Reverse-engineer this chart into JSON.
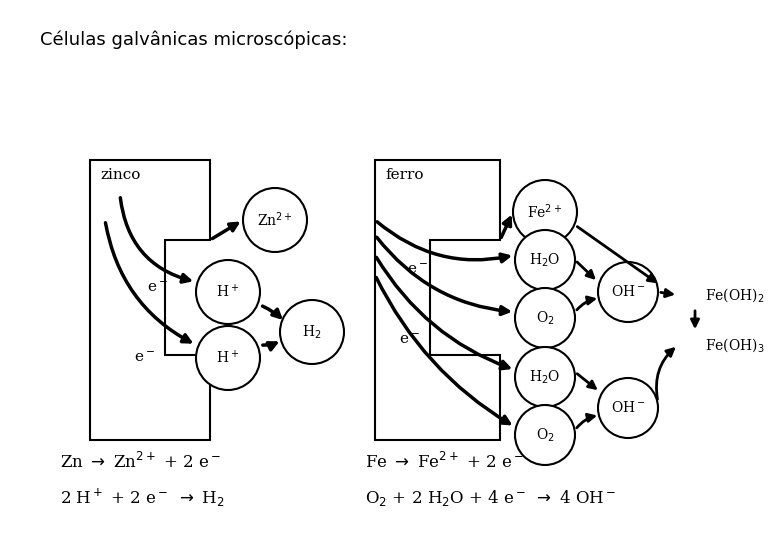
{
  "title": "Células galvânicas microscópicas:",
  "bg_color": "#ffffff",
  "zinc_label": "zinco",
  "iron_label": "ferro",
  "feoh2_label": "Fe(OH)$_2$",
  "feoh3_label": "Fe(OH)$_3$",
  "eq1": "Zn $\\rightarrow$ Zn$^{2+}$ + 2 e$^-$",
  "eq2": "2 H$^+$ + 2 e$^-$ $\\rightarrow$ H$_2$",
  "eq3": "Fe $\\rightarrow$ Fe$^{2+}$ + 2 e$^-$",
  "eq4": "O$_2$ + 2 H$_2$O + 4 e$^-$ $\\rightarrow$ 4 OH$^-$"
}
